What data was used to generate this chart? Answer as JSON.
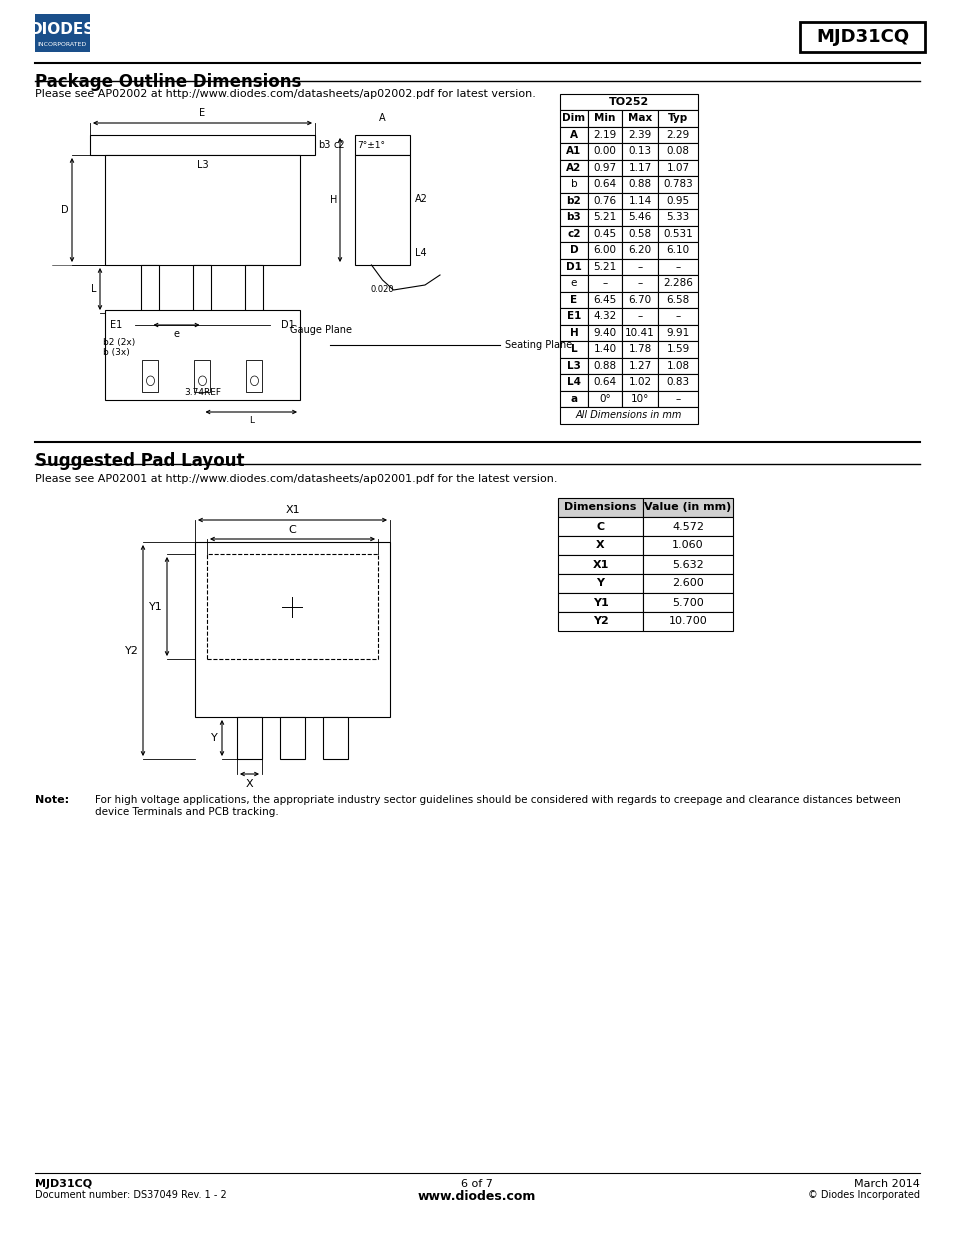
{
  "title_main": "MJD31CQ",
  "section1_title": "Package Outline Dimensions",
  "section1_text": "Please see AP02002 at http://www.diodes.com/datasheets/ap02002.pdf for latest version.",
  "section2_title": "Suggested Pad Layout",
  "section2_text": "Please see AP02001 at http://www.diodes.com/datasheets/ap02001.pdf for the latest version.",
  "note_label": "Note:",
  "note_text": "For high voltage applications, the appropriate industry sector guidelines should be considered with regards to creepage and clearance distances between\ndevice Terminals and PCB tracking.",
  "footer_left1": "MJD31CQ",
  "footer_left2": "Document number: DS37049 Rev. 1 - 2",
  "footer_center1": "6 of 7",
  "footer_center2": "www.diodes.com",
  "footer_right1": "March 2014",
  "footer_right2": "© Diodes Incorporated",
  "table1_title": "TO252",
  "table1_headers": [
    "Dim",
    "Min",
    "Max",
    "Typ"
  ],
  "table1_rows": [
    [
      "A",
      "2.19",
      "2.39",
      "2.29"
    ],
    [
      "A1",
      "0.00",
      "0.13",
      "0.08"
    ],
    [
      "A2",
      "0.97",
      "1.17",
      "1.07"
    ],
    [
      "b",
      "0.64",
      "0.88",
      "0.783"
    ],
    [
      "b2",
      "0.76",
      "1.14",
      "0.95"
    ],
    [
      "b3",
      "5.21",
      "5.46",
      "5.33"
    ],
    [
      "c2",
      "0.45",
      "0.58",
      "0.531"
    ],
    [
      "D",
      "6.00",
      "6.20",
      "6.10"
    ],
    [
      "D1",
      "5.21",
      "–",
      "–"
    ],
    [
      "e",
      "–",
      "–",
      "2.286"
    ],
    [
      "E",
      "6.45",
      "6.70",
      "6.58"
    ],
    [
      "E1",
      "4.32",
      "–",
      "–"
    ],
    [
      "H",
      "9.40",
      "10.41",
      "9.91"
    ],
    [
      "L",
      "1.40",
      "1.78",
      "1.59"
    ],
    [
      "L3",
      "0.88",
      "1.27",
      "1.08"
    ],
    [
      "L4",
      "0.64",
      "1.02",
      "0.83"
    ],
    [
      "a",
      "0°",
      "10°",
      "–"
    ]
  ],
  "table1_footer": "All Dimensions in mm",
  "table2_headers": [
    "Dimensions",
    "Value (in mm)"
  ],
  "table2_rows": [
    [
      "C",
      "4.572"
    ],
    [
      "X",
      "1.060"
    ],
    [
      "X1",
      "5.632"
    ],
    [
      "Y",
      "2.600"
    ],
    [
      "Y1",
      "5.700"
    ],
    [
      "Y2",
      "10.700"
    ]
  ],
  "bg_color": "#ffffff",
  "text_color": "#000000",
  "blue_color": "#1a4f8a",
  "bold_dim_rows": [
    "A",
    "A1",
    "A2",
    "b2",
    "b3",
    "c2",
    "D",
    "D1",
    "E",
    "E1",
    "H",
    "L",
    "L3",
    "L4",
    "a"
  ],
  "table2_bold_dims": [
    "C",
    "X",
    "X1",
    "Y",
    "Y1",
    "Y2"
  ]
}
